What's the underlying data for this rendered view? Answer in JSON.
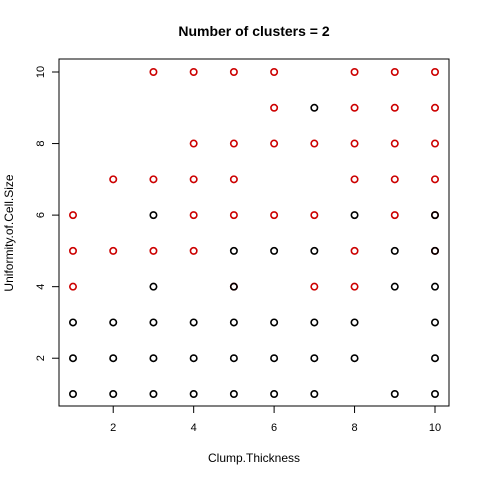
{
  "chart_data": {
    "type": "scatter",
    "title": "Number of clusters = 2",
    "xlabel": "Clump.Thickness",
    "ylabel": "Uniformity.of.Cell.Size",
    "xlim": [
      1,
      10
    ],
    "ylim": [
      1,
      10
    ],
    "xticks": [
      2,
      4,
      6,
      8,
      10
    ],
    "yticks": [
      2,
      4,
      6,
      8,
      10
    ],
    "grid": false,
    "series": [
      {
        "color": "#cc0000",
        "points": [
          [
            1,
            6
          ],
          [
            1,
            5
          ],
          [
            1,
            4
          ],
          [
            2,
            7
          ],
          [
            2,
            5
          ],
          [
            3,
            10
          ],
          [
            3,
            7
          ],
          [
            3,
            5
          ],
          [
            4,
            10
          ],
          [
            4,
            8
          ],
          [
            4,
            7
          ],
          [
            4,
            6
          ],
          [
            4,
            5
          ],
          [
            5,
            10
          ],
          [
            5,
            8
          ],
          [
            5,
            7
          ],
          [
            5,
            6
          ],
          [
            5,
            4
          ],
          [
            6,
            10
          ],
          [
            6,
            9
          ],
          [
            6,
            8
          ],
          [
            6,
            6
          ],
          [
            7,
            8
          ],
          [
            7,
            6
          ],
          [
            7,
            4
          ],
          [
            8,
            10
          ],
          [
            8,
            9
          ],
          [
            8,
            8
          ],
          [
            8,
            7
          ],
          [
            8,
            5
          ],
          [
            8,
            4
          ],
          [
            9,
            10
          ],
          [
            9,
            9
          ],
          [
            9,
            8
          ],
          [
            9,
            7
          ],
          [
            9,
            6
          ],
          [
            10,
            10
          ],
          [
            10,
            9
          ],
          [
            10,
            8
          ],
          [
            10,
            7
          ],
          [
            10,
            6
          ],
          [
            10,
            5
          ]
        ]
      },
      {
        "color": "#000000",
        "points": [
          [
            1,
            3
          ],
          [
            1,
            2
          ],
          [
            1,
            1
          ],
          [
            2,
            3
          ],
          [
            2,
            2
          ],
          [
            2,
            1
          ],
          [
            3,
            6
          ],
          [
            3,
            4
          ],
          [
            3,
            3
          ],
          [
            3,
            2
          ],
          [
            3,
            1
          ],
          [
            4,
            3
          ],
          [
            4,
            2
          ],
          [
            4,
            1
          ],
          [
            5,
            5
          ],
          [
            5,
            4
          ],
          [
            5,
            3
          ],
          [
            5,
            2
          ],
          [
            5,
            1
          ],
          [
            6,
            5
          ],
          [
            6,
            3
          ],
          [
            6,
            2
          ],
          [
            6,
            1
          ],
          [
            7,
            9
          ],
          [
            7,
            5
          ],
          [
            7,
            3
          ],
          [
            7,
            2
          ],
          [
            7,
            1
          ],
          [
            8,
            6
          ],
          [
            8,
            3
          ],
          [
            8,
            2
          ],
          [
            9,
            5
          ],
          [
            9,
            4
          ],
          [
            9,
            1
          ],
          [
            10,
            6
          ],
          [
            10,
            5
          ],
          [
            10,
            4
          ],
          [
            10,
            3
          ],
          [
            10,
            2
          ],
          [
            10,
            1
          ]
        ]
      }
    ]
  }
}
